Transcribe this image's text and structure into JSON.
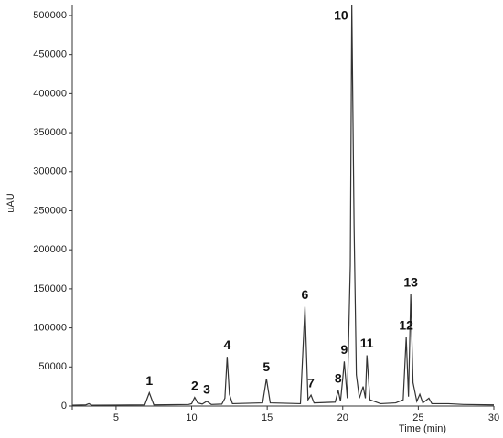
{
  "chart_data": {
    "type": "line",
    "x_label": "Time (min)",
    "y_label": "uAU",
    "xlim": [
      2.1,
      30
    ],
    "ylim": [
      0,
      514000
    ],
    "xticks": [
      5,
      10,
      15,
      20,
      25,
      30
    ],
    "yticks": [
      0,
      50000,
      100000,
      150000,
      200000,
      250000,
      300000,
      350000,
      400000,
      450000,
      500000
    ],
    "x": [
      2.1,
      3,
      3.2,
      3.4,
      6.9,
      7.2,
      7.5,
      9.8,
      10.0,
      10.2,
      10.4,
      10.7,
      11.0,
      11.3,
      12.0,
      12.2,
      12.35,
      12.5,
      12.7,
      14.7,
      14.95,
      15.2,
      17.2,
      17.5,
      17.7,
      17.9,
      18.1,
      19.5,
      19.7,
      19.85,
      20.0,
      20.1,
      20.3,
      20.5,
      20.6,
      20.75,
      20.9,
      21.1,
      21.35,
      21.5,
      21.6,
      21.8,
      22.5,
      23.5,
      24.0,
      24.2,
      24.35,
      24.5,
      24.65,
      24.9,
      25.1,
      25.3,
      25.7,
      25.9,
      27,
      28,
      30
    ],
    "series": [
      {
        "color": "#333333",
        "values": [
          1000,
          1500,
          3000,
          1000,
          1500,
          17000,
          1500,
          2000,
          3000,
          11000,
          4000,
          2500,
          6000,
          2000,
          2500,
          10000,
          63000,
          15000,
          3000,
          4000,
          35000,
          4000,
          3000,
          127000,
          8000,
          14000,
          4000,
          5000,
          20000,
          6000,
          35000,
          57000,
          10000,
          180000,
          514000,
          230000,
          40000,
          10000,
          25000,
          10000,
          65000,
          8000,
          3000,
          4000,
          8000,
          88000,
          12000,
          143000,
          30000,
          6000,
          15000,
          4000,
          10000,
          3000,
          3000,
          2000,
          1500
        ]
      }
    ],
    "peaks": [
      {
        "label": "1",
        "x": 7.2,
        "y": 17000
      },
      {
        "label": "2",
        "x": 10.2,
        "y": 11000
      },
      {
        "label": "3",
        "x": 11.0,
        "y": 6000
      },
      {
        "label": "4",
        "x": 12.35,
        "y": 63000
      },
      {
        "label": "5",
        "x": 14.95,
        "y": 35000
      },
      {
        "label": "6",
        "x": 17.5,
        "y": 127000
      },
      {
        "label": "7",
        "x": 17.9,
        "y": 14000
      },
      {
        "label": "8",
        "x": 19.7,
        "y": 20000
      },
      {
        "label": "9",
        "x": 20.1,
        "y": 57000
      },
      {
        "label": "10",
        "x": 20.6,
        "y": 514000
      },
      {
        "label": "11",
        "x": 21.6,
        "y": 65000
      },
      {
        "label": "12",
        "x": 24.2,
        "y": 88000
      },
      {
        "label": "13",
        "x": 24.5,
        "y": 143000
      }
    ]
  }
}
